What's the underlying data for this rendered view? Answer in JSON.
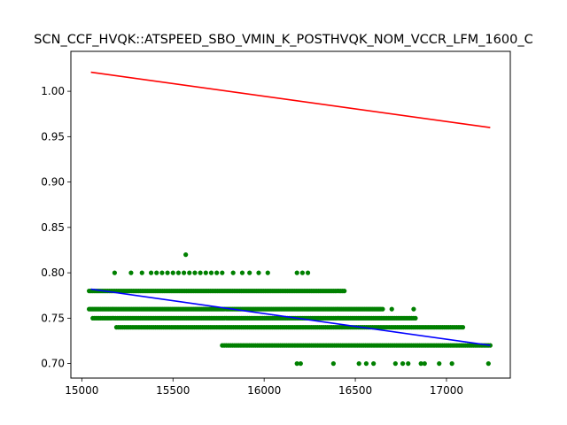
{
  "chart_data": {
    "type": "scatter",
    "title": "SCN_CCF_HVQK::ATSPEED_SBO_VMIN_K_POSTHVQK_NOM_VCCR_LFM_1600_C",
    "xlabel": "",
    "ylabel": "",
    "xlim": [
      14940,
      17350
    ],
    "ylim": [
      0.684,
      1.044
    ],
    "x_ticks": [
      15000,
      15500,
      16000,
      16500,
      17000
    ],
    "x_tick_labels": [
      "15000",
      "15500",
      "16000",
      "16500",
      "17000"
    ],
    "y_ticks": [
      0.7,
      0.75,
      0.8,
      0.85,
      0.9,
      0.95,
      1.0
    ],
    "y_tick_labels": [
      "0.70",
      "0.75",
      "0.80",
      "0.85",
      "0.90",
      "0.95",
      "1.00"
    ],
    "grid": false,
    "legend": "none",
    "colors": {
      "points": "#008000",
      "upper_line": "#ff0000",
      "fit_line": "#0000ff"
    },
    "scatter_bands": [
      {
        "y": 0.82,
        "x": [
          15570
        ]
      },
      {
        "y": 0.8,
        "x": [
          15180,
          15270,
          15330,
          15380,
          15410,
          15440,
          15470,
          15500,
          15530,
          15560,
          15590,
          15620,
          15650,
          15680,
          15710,
          15740,
          15770,
          15830,
          15880,
          15920,
          15970,
          16020,
          16180,
          16210,
          16240
        ]
      },
      {
        "y": 0.78,
        "x_range": [
          15040,
          16440
        ],
        "n": 140
      },
      {
        "y": 0.76,
        "x_range": [
          15040,
          16640
        ],
        "n": 180
      },
      {
        "y": 0.76,
        "x": [
          16650,
          16700,
          16820
        ]
      },
      {
        "y": 0.75,
        "x_range": [
          15060,
          16830
        ],
        "n": 170
      },
      {
        "y": 0.74,
        "x_range": [
          15190,
          17090
        ],
        "n": 170
      },
      {
        "y": 0.72,
        "x_range": [
          15770,
          17240
        ],
        "n": 130
      },
      {
        "y": 0.7,
        "x": [
          16180,
          16200,
          16380,
          16520,
          16560,
          16600,
          16720,
          16760,
          16790,
          16860,
          16880,
          16960,
          17030,
          17230
        ]
      }
    ],
    "series": [
      {
        "type": "line",
        "x": [
          15050,
          17240
        ],
        "y": [
          1.021,
          0.96
        ]
      },
      {
        "type": "line",
        "x": [
          15050,
          17240
        ],
        "y": [
          0.782,
          0.72
        ]
      }
    ]
  }
}
